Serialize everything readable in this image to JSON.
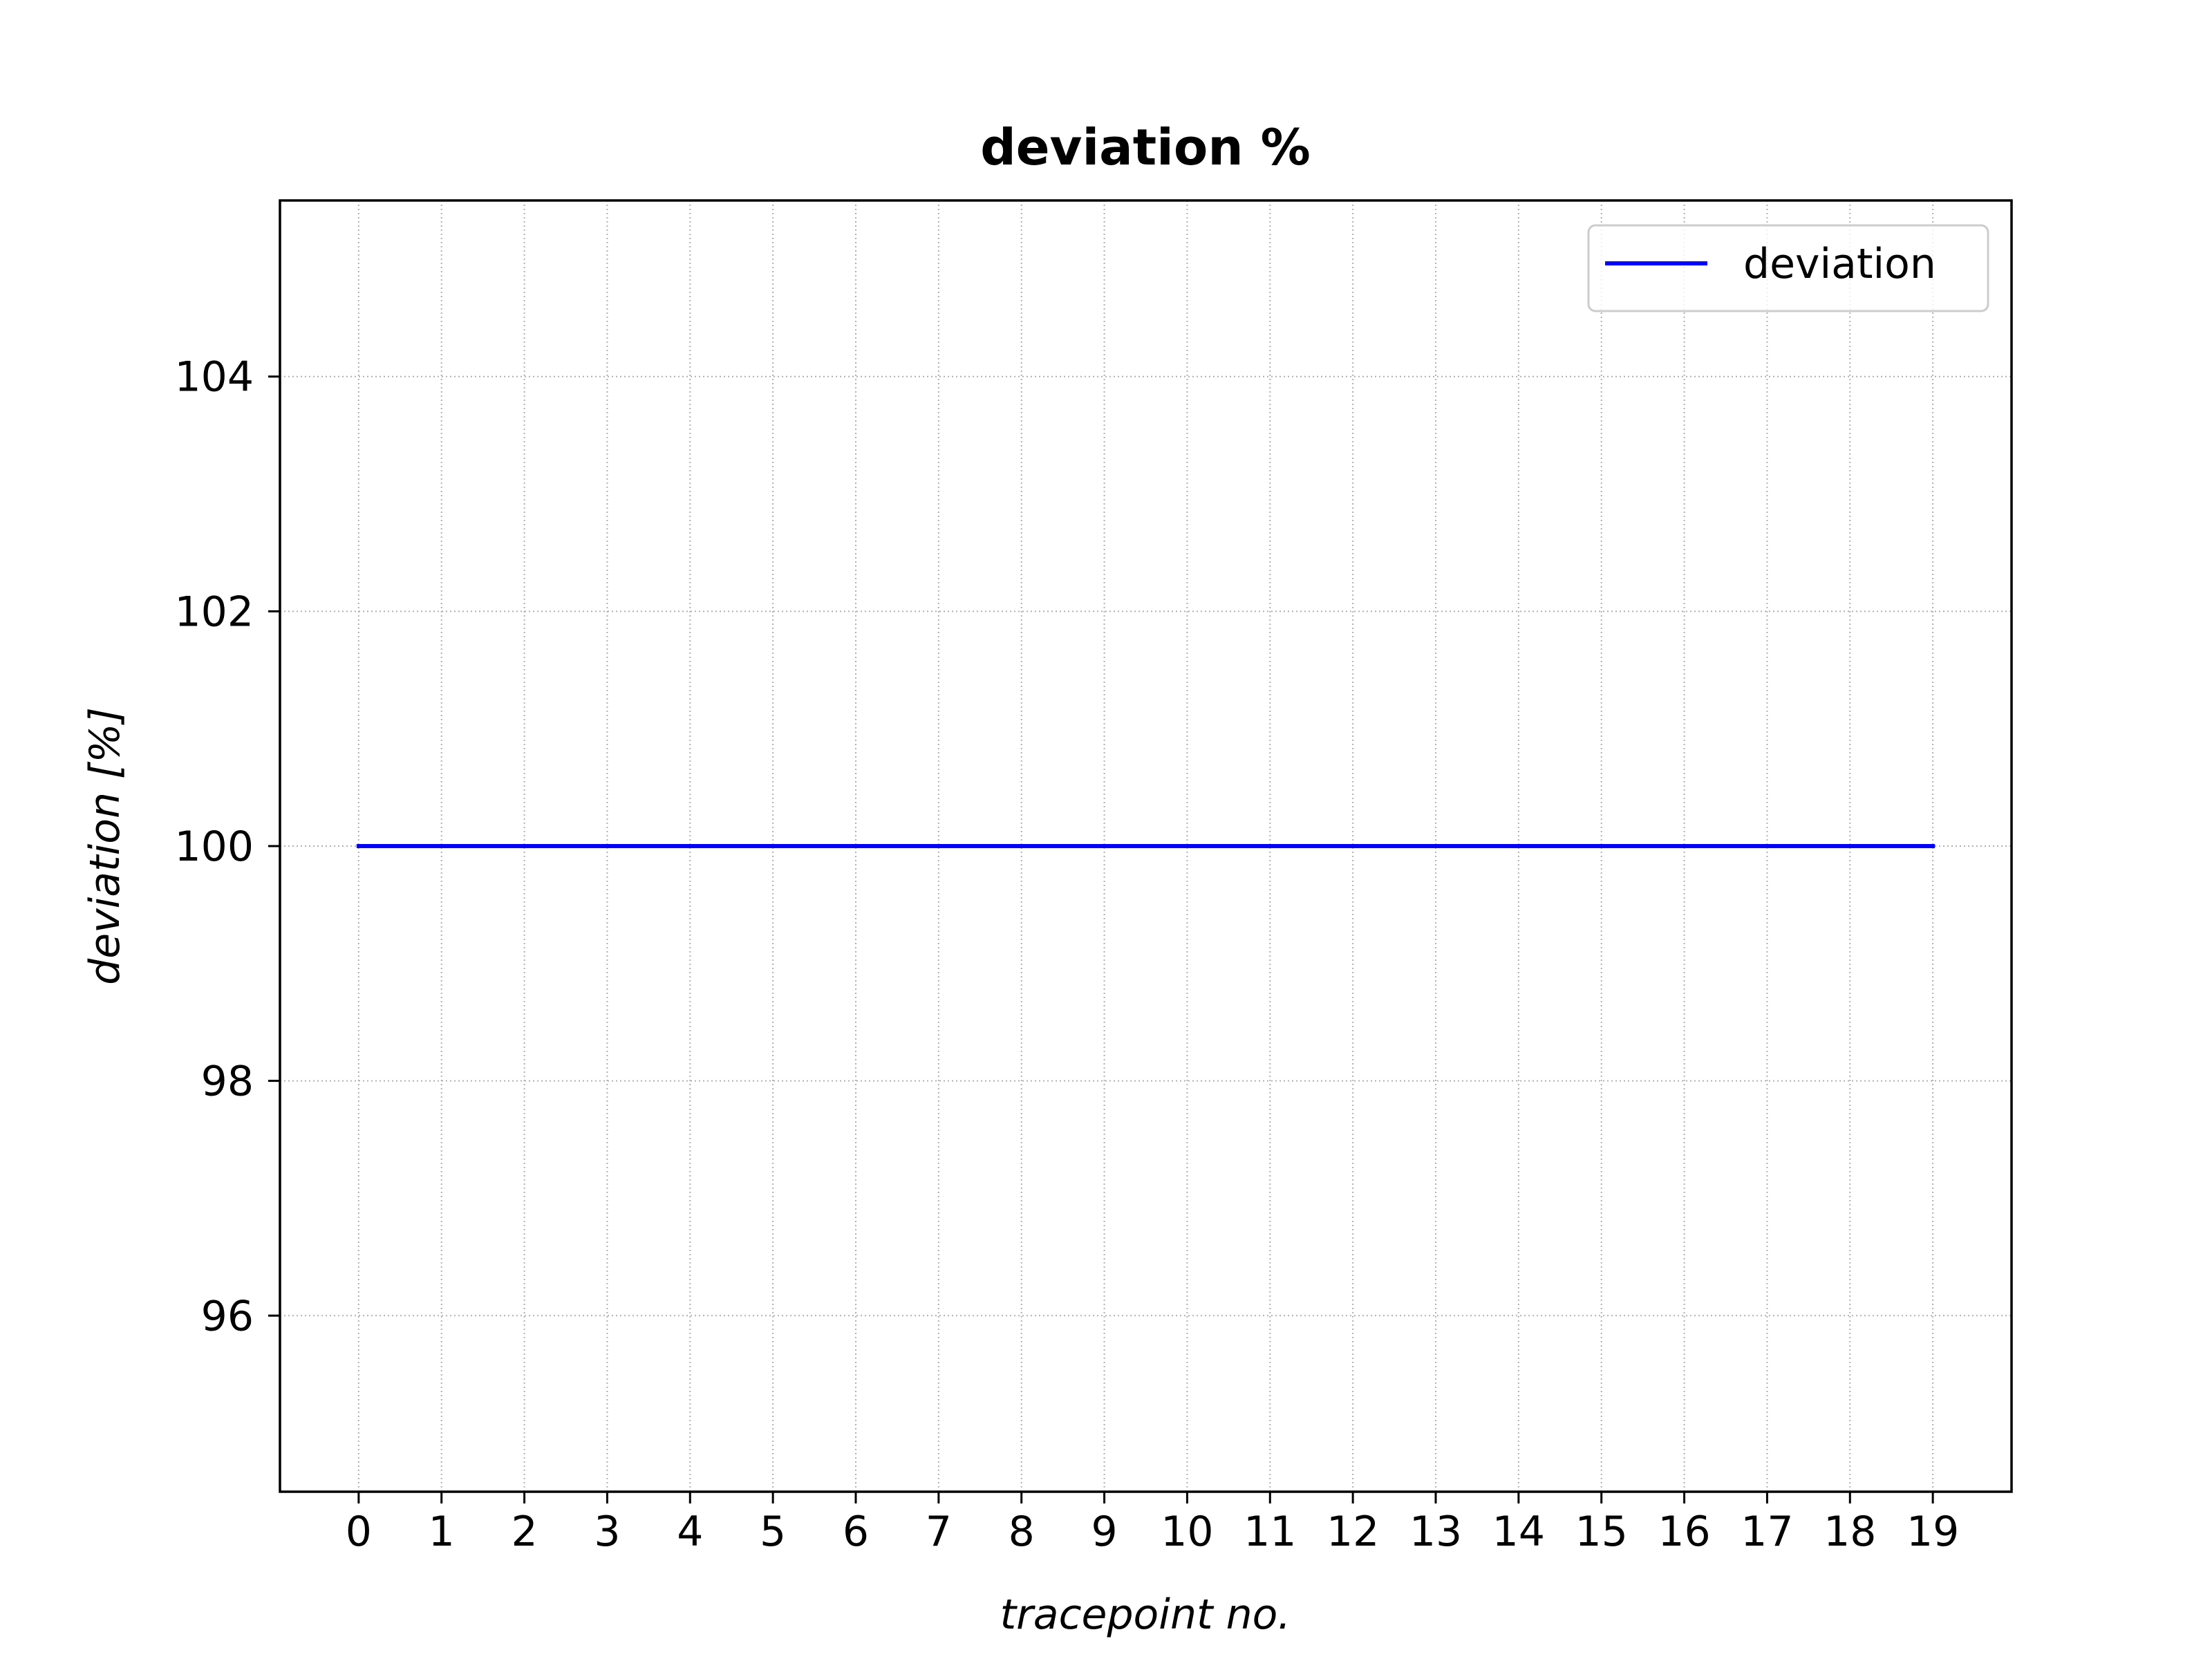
{
  "chart_data": {
    "type": "line",
    "title": "deviation %",
    "xlabel": "tracepoint no.",
    "ylabel": "deviation [%]",
    "x": [
      0,
      1,
      2,
      3,
      4,
      5,
      6,
      7,
      8,
      9,
      10,
      11,
      12,
      13,
      14,
      15,
      16,
      17,
      18,
      19
    ],
    "xticks": [
      "0",
      "1",
      "2",
      "3",
      "4",
      "5",
      "6",
      "7",
      "8",
      "9",
      "10",
      "11",
      "12",
      "13",
      "14",
      "15",
      "16",
      "17",
      "18",
      "19"
    ],
    "yticks": [
      96,
      98,
      100,
      102,
      104
    ],
    "xlim": [
      -0.95,
      19.95
    ],
    "ylim": [
      94.5,
      105.5
    ],
    "grid": true,
    "legend_position": "top-right",
    "series": [
      {
        "name": "deviation",
        "color": "#0000ff",
        "values": [
          100,
          100,
          100,
          100,
          100,
          100,
          100,
          100,
          100,
          100,
          100,
          100,
          100,
          100,
          100,
          100,
          100,
          100,
          100,
          100
        ]
      }
    ]
  }
}
